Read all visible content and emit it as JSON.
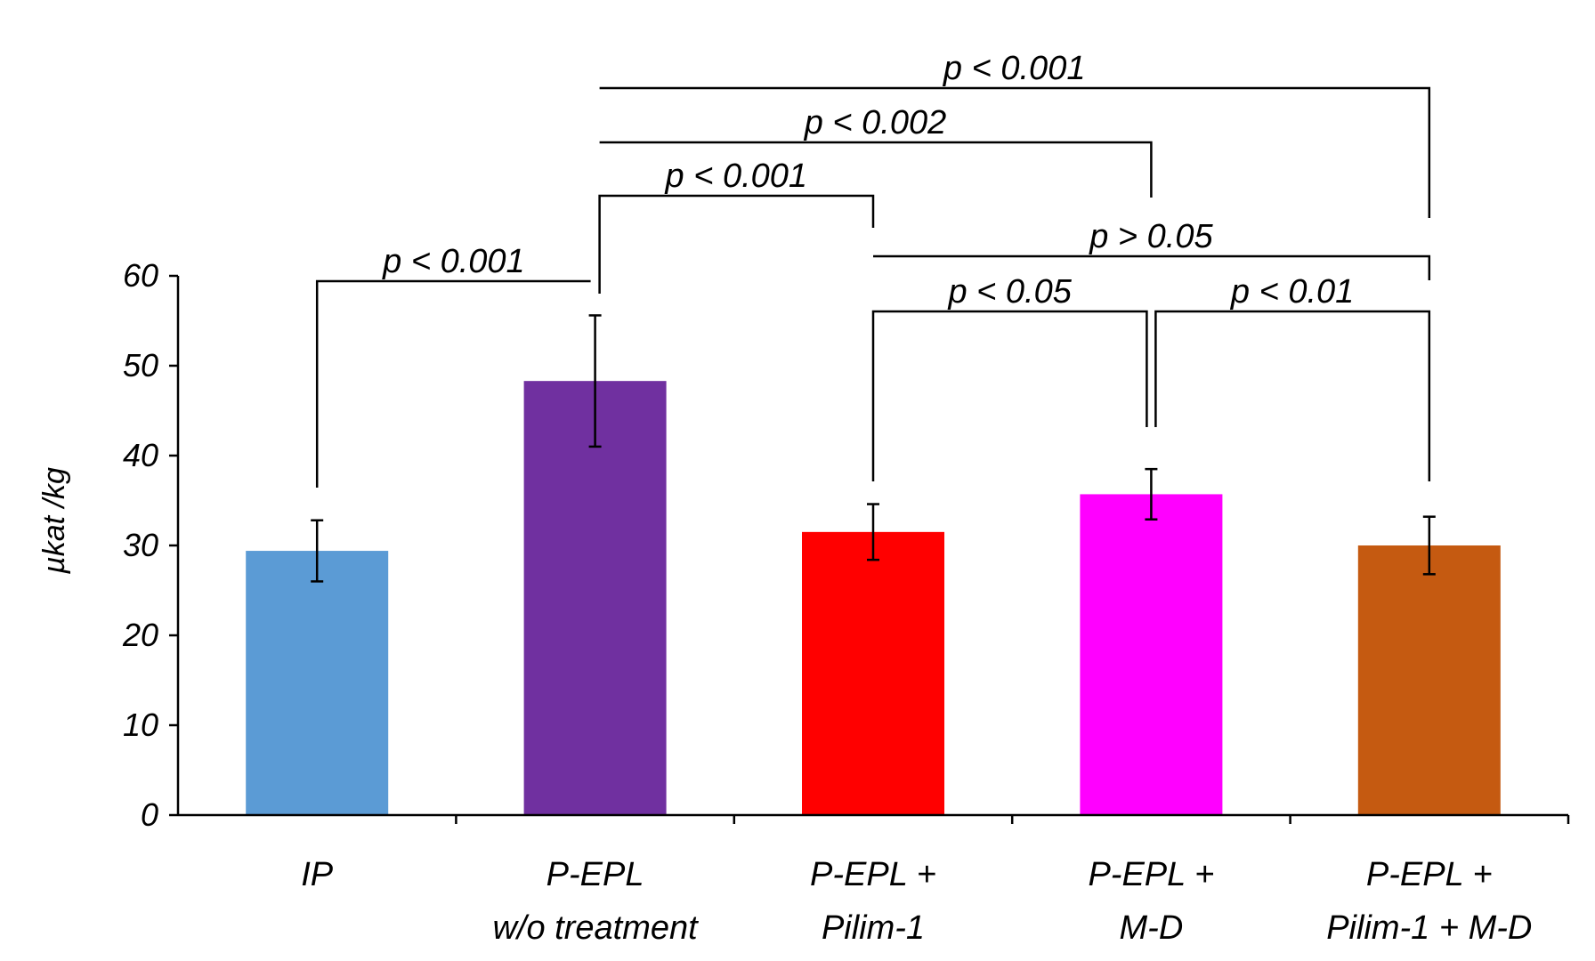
{
  "chart_data": {
    "type": "bar",
    "title": "",
    "xlabel": "",
    "ylabel": "µkat /kg",
    "ylim": [
      0,
      60
    ],
    "yticks": [
      0,
      10,
      20,
      30,
      40,
      50,
      60
    ],
    "ytick_labels": [
      "0",
      "10",
      "20",
      "30",
      "40",
      "50",
      "60"
    ],
    "grid": false,
    "legend": "none",
    "categories": [
      {
        "lines": [
          "IP"
        ]
      },
      {
        "lines": [
          "P-EPL",
          "w/o treatment"
        ]
      },
      {
        "lines": [
          "P-EPL +",
          "Pilim-1"
        ]
      },
      {
        "lines": [
          "P-EPL +",
          "M-D"
        ]
      },
      {
        "lines": [
          "P-EPL +",
          "Pilim-1 + M-D"
        ]
      }
    ],
    "values": [
      29.4,
      48.3,
      31.5,
      35.7,
      30.0
    ],
    "errors": [
      3.4,
      7.3,
      3.1,
      2.8,
      3.2
    ],
    "colors": [
      "#5b9bd5",
      "#7030a0",
      "#ff0000",
      "#ff00ff",
      "#c55a11"
    ],
    "comparisons": [
      {
        "from": 0,
        "to": 1,
        "label": "p < 0.001"
      },
      {
        "from": 1,
        "to": 2,
        "label": "p < 0.001"
      },
      {
        "from": 1,
        "to": 3,
        "label": "p < 0.002"
      },
      {
        "from": 1,
        "to": 4,
        "label": "p < 0.001"
      },
      {
        "from": 2,
        "to": 4,
        "label": "p > 0.05"
      },
      {
        "from": 2,
        "to": 3,
        "label": "p < 0.05"
      },
      {
        "from": 3,
        "to": 4,
        "label": "p < 0.01"
      }
    ]
  }
}
